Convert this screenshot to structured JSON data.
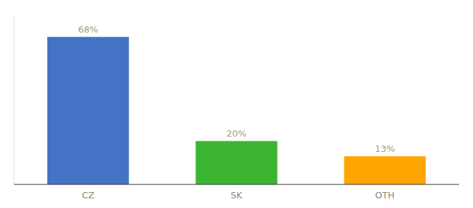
{
  "chart_data": {
    "type": "bar",
    "categories": [
      "CZ",
      "SK",
      "OTH"
    ],
    "values": [
      68,
      20,
      13
    ],
    "value_labels": [
      "68%",
      "20%",
      "13%"
    ],
    "colors": [
      "#4472C4",
      "#3CB531",
      "#FFA500"
    ],
    "ylim": [
      0,
      78
    ],
    "data_labels": true,
    "tick_labels": "x",
    "grid": false
  }
}
